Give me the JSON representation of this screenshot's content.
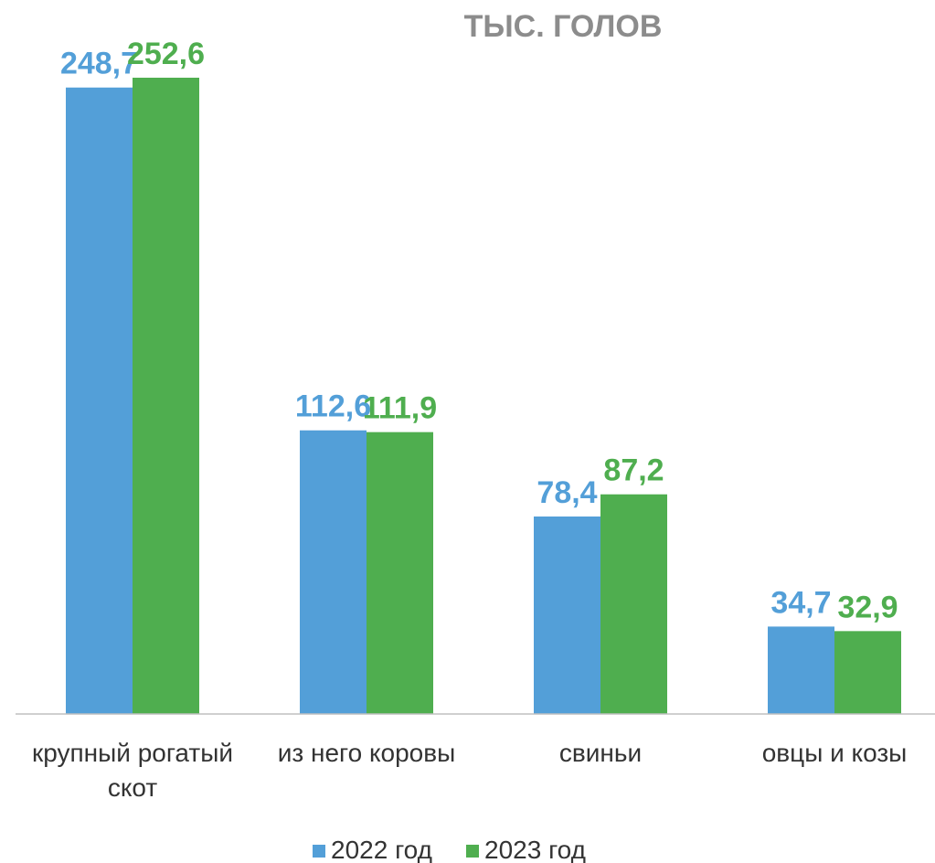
{
  "chart_data": {
    "type": "bar",
    "title": "ТЫС. ГОЛОВ",
    "categories": [
      [
        "крупный рогатый",
        "скот"
      ],
      [
        "из него коровы"
      ],
      [
        "свиньи"
      ],
      [
        "овцы и козы"
      ]
    ],
    "series": [
      {
        "name": "2022 год",
        "color": "#539fd8",
        "values": [
          248.7,
          112.6,
          78.4,
          34.7
        ],
        "labels": [
          "248,7",
          "112,6",
          "78,4",
          "34,7"
        ]
      },
      {
        "name": "2023 год",
        "color": "#4fae4f",
        "values": [
          252.6,
          111.9,
          87.2,
          32.9
        ],
        "labels": [
          "252,6",
          "111,9",
          "87,2",
          "32,9"
        ]
      }
    ],
    "ylim": [
      0,
      252.6
    ],
    "grid": false,
    "legend": "bottom"
  }
}
